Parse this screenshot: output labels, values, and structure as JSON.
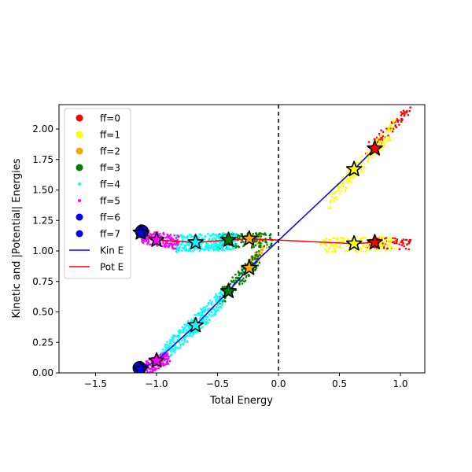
{
  "chart_data": {
    "type": "scatter",
    "title": "",
    "xlabel": "Total Energy",
    "ylabel": "Kinetic and |Potential| Energies",
    "xlim": [
      -1.8,
      1.2
    ],
    "ylim": [
      0.0,
      2.2
    ],
    "x_ticks": [
      -1.5,
      -1.0,
      -0.5,
      0.0,
      0.5,
      1.0
    ],
    "x_tick_labels": [
      "−1.5",
      "−1.0",
      "−0.5",
      "0.0",
      "0.5",
      "1.0"
    ],
    "y_ticks": [
      0.0,
      0.25,
      0.5,
      0.75,
      1.0,
      1.25,
      1.5,
      1.75,
      2.0
    ],
    "y_tick_labels": [
      "0.00",
      "0.25",
      "0.50",
      "0.75",
      "1.00",
      "1.25",
      "1.50",
      "1.75",
      "2.00"
    ],
    "grid": false,
    "legend_position": "top-left",
    "reference_line": {
      "x": 0.0,
      "style": "dashed",
      "color": "#000000"
    },
    "scatter_groups": [
      {
        "name": "ff=0",
        "color": "#ff0000",
        "marker": "dot",
        "kin_band": {
          "x": [
            0.72,
            1.08
          ],
          "y0": 1.82,
          "y1": 2.16,
          "spread": 0.05,
          "n": 70
        },
        "pot_band": {
          "x": [
            0.72,
            1.08
          ],
          "y0": 1.07,
          "y1": 1.06,
          "spread": 0.05,
          "n": 70
        }
      },
      {
        "name": "ff=1",
        "color": "#ffff00",
        "marker": "dot",
        "kin_band": {
          "x": [
            0.42,
            0.95
          ],
          "y0": 1.42,
          "y1": 2.02,
          "spread": 0.07,
          "n": 170
        },
        "pot_band": {
          "x": [
            0.35,
            0.95
          ],
          "y0": 1.05,
          "y1": 1.06,
          "spread": 0.06,
          "n": 150
        }
      },
      {
        "name": "ff=2",
        "color": "#ffa500",
        "marker": "dot",
        "kin_band": {
          "x": [
            -0.28,
            -0.1
          ],
          "y0": 0.85,
          "y1": 1.02,
          "spread": 0.05,
          "n": 40
        },
        "pot_band": {
          "x": [
            -0.28,
            -0.1
          ],
          "y0": 1.1,
          "y1": 1.1,
          "spread": 0.04,
          "n": 30
        }
      },
      {
        "name": "ff=3",
        "color": "#008000",
        "marker": "dot",
        "kin_band": {
          "x": [
            -0.48,
            -0.15
          ],
          "y0": 0.62,
          "y1": 0.95,
          "spread": 0.07,
          "n": 150
        },
        "pot_band": {
          "x": [
            -0.5,
            -0.05
          ],
          "y0": 1.08,
          "y1": 1.09,
          "spread": 0.06,
          "n": 150
        }
      },
      {
        "name": "ff=4",
        "color": "#00ffff",
        "marker": "dot",
        "kin_band": {
          "x": [
            -0.95,
            -0.45
          ],
          "y0": 0.14,
          "y1": 0.62,
          "spread": 0.08,
          "n": 300
        },
        "pot_band": {
          "x": [
            -0.85,
            -0.35
          ],
          "y0": 1.06,
          "y1": 1.08,
          "spread": 0.07,
          "n": 300
        }
      },
      {
        "name": "ff=5",
        "color": "#ff00ff",
        "marker": "dot",
        "kin_band": {
          "x": [
            -1.12,
            -0.9
          ],
          "y0": 0.02,
          "y1": 0.14,
          "spread": 0.06,
          "n": 160
        },
        "pot_band": {
          "x": [
            -1.12,
            -0.82
          ],
          "y0": 1.12,
          "y1": 1.07,
          "spread": 0.06,
          "n": 160
        }
      },
      {
        "name": "ff=6",
        "color": "#0000ff",
        "marker": "dot",
        "kin_band": {
          "x": [
            -1.16,
            -1.08
          ],
          "y0": 0.02,
          "y1": 0.05,
          "spread": 0.02,
          "n": 15
        },
        "pot_band": {
          "x": [
            -1.16,
            -1.08
          ],
          "y0": 1.17,
          "y1": 1.14,
          "spread": 0.02,
          "n": 15
        }
      },
      {
        "name": "ff=7",
        "color": "#0000ff",
        "marker": "dot",
        "kin_band": {
          "x": [
            -1.16,
            -1.1
          ],
          "y0": 0.01,
          "y1": 0.03,
          "spread": 0.015,
          "n": 10
        },
        "pot_band": {
          "x": [
            -1.16,
            -1.1
          ],
          "y0": 1.16,
          "y1": 1.14,
          "spread": 0.015,
          "n": 10
        }
      }
    ],
    "series": [
      {
        "name": "Kin E",
        "color": "#0000ff",
        "x": [
          -1.13,
          -1.0,
          -0.68,
          -0.41,
          -0.24,
          0.62,
          0.79
        ],
        "y": [
          0.03,
          0.1,
          0.39,
          0.67,
          0.86,
          1.67,
          1.84
        ]
      },
      {
        "name": "Pot E",
        "color": "#ff0000",
        "x": [
          -1.13,
          -1.0,
          -0.68,
          -0.41,
          -0.24,
          0.62,
          0.79
        ],
        "y": [
          1.15,
          1.09,
          1.07,
          1.09,
          1.1,
          1.06,
          1.07
        ]
      }
    ],
    "star_markers": [
      {
        "x": -1.13,
        "y": 0.03,
        "color": "#0000ff"
      },
      {
        "x": -1.13,
        "y": 1.15,
        "color": "#0000ff"
      },
      {
        "x": -1.0,
        "y": 0.1,
        "color": "#ff00ff"
      },
      {
        "x": -1.0,
        "y": 1.09,
        "color": "#ff00ff"
      },
      {
        "x": -0.68,
        "y": 0.39,
        "color": "#00ffff"
      },
      {
        "x": -0.68,
        "y": 1.07,
        "color": "#00ffff"
      },
      {
        "x": -0.41,
        "y": 0.67,
        "color": "#008000"
      },
      {
        "x": -0.41,
        "y": 1.09,
        "color": "#008000"
      },
      {
        "x": -0.24,
        "y": 0.86,
        "color": "#ffa500"
      },
      {
        "x": -0.24,
        "y": 1.1,
        "color": "#ffa500"
      },
      {
        "x": 0.62,
        "y": 1.67,
        "color": "#ffff00"
      },
      {
        "x": 0.62,
        "y": 1.06,
        "color": "#ffff00"
      },
      {
        "x": 0.79,
        "y": 1.84,
        "color": "#ff0000"
      },
      {
        "x": 0.79,
        "y": 1.07,
        "color": "#ff0000"
      }
    ],
    "large_markers": [
      {
        "x": -1.14,
        "y": 0.04,
        "color": "#0000ff"
      },
      {
        "x": -1.12,
        "y": 1.16,
        "color": "#0000ff"
      }
    ],
    "legend": [
      {
        "label": "ff=0",
        "color": "#ff0000",
        "kind": "dot"
      },
      {
        "label": "ff=1",
        "color": "#ffff00",
        "kind": "dot"
      },
      {
        "label": "ff=2",
        "color": "#ffa500",
        "kind": "dot"
      },
      {
        "label": "ff=3",
        "color": "#008000",
        "kind": "dot"
      },
      {
        "label": "ff=4",
        "color": "#00ffff",
        "kind": "small-dot"
      },
      {
        "label": "ff=5",
        "color": "#ff00ff",
        "kind": "small-dot"
      },
      {
        "label": "ff=6",
        "color": "#0000ff",
        "kind": "dot"
      },
      {
        "label": "ff=7",
        "color": "#0000ff",
        "kind": "dot"
      },
      {
        "label": "Kin E",
        "color": "#0000ff",
        "kind": "line"
      },
      {
        "label": "Pot E",
        "color": "#ff0000",
        "kind": "line"
      }
    ]
  }
}
